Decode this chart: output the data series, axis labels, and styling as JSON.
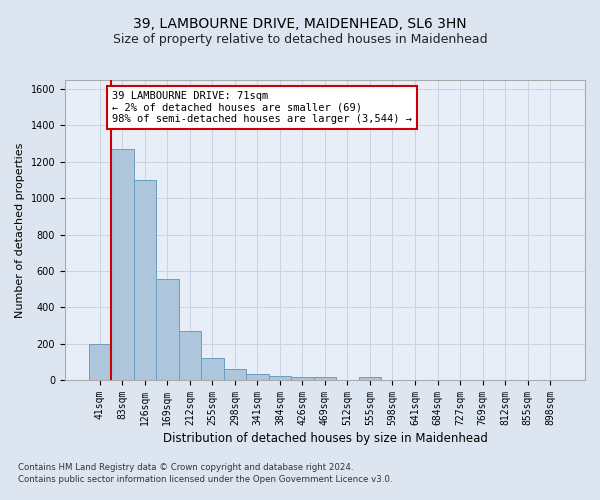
{
  "title": "39, LAMBOURNE DRIVE, MAIDENHEAD, SL6 3HN",
  "subtitle": "Size of property relative to detached houses in Maidenhead",
  "xlabel": "Distribution of detached houses by size in Maidenhead",
  "ylabel": "Number of detached properties",
  "footnote1": "Contains HM Land Registry data © Crown copyright and database right 2024.",
  "footnote2": "Contains public sector information licensed under the Open Government Licence v3.0.",
  "bin_labels": [
    "41sqm",
    "83sqm",
    "126sqm",
    "169sqm",
    "212sqm",
    "255sqm",
    "298sqm",
    "341sqm",
    "384sqm",
    "426sqm",
    "469sqm",
    "512sqm",
    "555sqm",
    "598sqm",
    "641sqm",
    "684sqm",
    "727sqm",
    "769sqm",
    "812sqm",
    "855sqm",
    "898sqm"
  ],
  "bar_heights": [
    200,
    1270,
    1100,
    555,
    270,
    120,
    60,
    35,
    25,
    15,
    15,
    0,
    15,
    0,
    0,
    0,
    0,
    0,
    0,
    0,
    0
  ],
  "bar_color": "#aec6dc",
  "bar_edge_color": "#6a9ec0",
  "bar_edge_width": 0.7,
  "ylim": [
    0,
    1650
  ],
  "yticks": [
    0,
    200,
    400,
    600,
    800,
    1000,
    1200,
    1400,
    1600
  ],
  "property_line_color": "#cc0000",
  "annotation_text": "39 LAMBOURNE DRIVE: 71sqm\n← 2% of detached houses are smaller (69)\n98% of semi-detached houses are larger (3,544) →",
  "annotation_box_color": "#ffffff",
  "annotation_box_edge": "#cc0000",
  "grid_color": "#c8d4e4",
  "bg_color": "#dde6f0",
  "plot_bg_color": "#e8eef8",
  "title_fontsize": 10,
  "subtitle_fontsize": 9,
  "xlabel_fontsize": 8.5,
  "ylabel_fontsize": 8,
  "tick_fontsize": 7,
  "annotation_fontsize": 7.5
}
